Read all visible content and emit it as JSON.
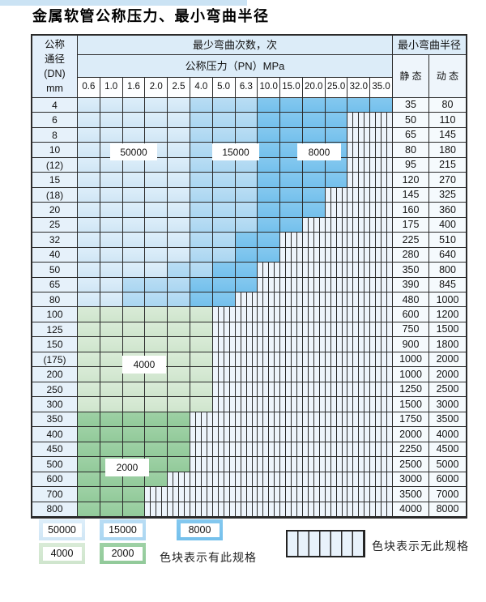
{
  "title": "金属软管公称压力、最小弯曲半径",
  "colors": {
    "blue_50000": "#d9ebf8",
    "blue_15000": "#b2d9f2",
    "blue_8000": "#79c3ee",
    "green_4000": "#d5e8d3",
    "green_2000": "#97cd9f",
    "grid_line": "#2b2b2b",
    "header_bg": "#dcecf8"
  },
  "table": {
    "header": {
      "dn_lines": [
        "公称",
        "通径",
        "(DN)",
        "mm"
      ],
      "bend_cycles_label": "最少弯曲次数，次",
      "pressure_label": "公称压力（PN）MPa",
      "min_radius_label": "最小弯曲半径",
      "static_label": "静 态",
      "dynamic_label": "动 态",
      "pressures": [
        "0.6",
        "1.0",
        "1.6",
        "2.0",
        "2.5",
        "4.0",
        "5.0",
        "6.3",
        "10.0",
        "15.0",
        "20.0",
        "25.0",
        "32.0",
        "35.0"
      ]
    },
    "cell_code_meaning": {
      "L": "50000",
      "M": "15000",
      "D": "8000",
      "G": "4000",
      "E": "2000",
      "S": "no-spec-striped"
    },
    "rows": [
      {
        "dn": "4",
        "cells": "LLLLLMMMDDDDDD",
        "static": "35",
        "dynamic": "80"
      },
      {
        "dn": "6",
        "cells": "LLLLLMMMDDDDSS",
        "static": "50",
        "dynamic": "110"
      },
      {
        "dn": "8",
        "cells": "LLLLLMMMDDDDSS",
        "static": "65",
        "dynamic": "145"
      },
      {
        "dn": "10",
        "cells": "LLLLLMMMDDDDSS",
        "static": "80",
        "dynamic": "180"
      },
      {
        "dn": "(12)",
        "cells": "LLLLLMMMDDDDSS",
        "static": "95",
        "dynamic": "215"
      },
      {
        "dn": "15",
        "cells": "LLLLLMMMDDDDSS",
        "static": "120",
        "dynamic": "270"
      },
      {
        "dn": "(18)",
        "cells": "LLLLLMMMDDDSSS",
        "static": "145",
        "dynamic": "325"
      },
      {
        "dn": "20",
        "cells": "LLLLLMMMDDDSSS",
        "static": "160",
        "dynamic": "360"
      },
      {
        "dn": "25",
        "cells": "LLLLLMMMDDSSSS",
        "static": "175",
        "dynamic": "400"
      },
      {
        "dn": "32",
        "cells": "LLLLLMMDDSSSSS",
        "static": "225",
        "dynamic": "510"
      },
      {
        "dn": "40",
        "cells": "LLLLLMMDDSSSSS",
        "static": "280",
        "dynamic": "640"
      },
      {
        "dn": "50",
        "cells": "LLLLMMDDSSSSSS",
        "static": "350",
        "dynamic": "800"
      },
      {
        "dn": "65",
        "cells": "LLMMMDDDSSSSSS",
        "static": "390",
        "dynamic": "845"
      },
      {
        "dn": "80",
        "cells": "LLMMMDDSSSSSSS",
        "static": "480",
        "dynamic": "1000"
      },
      {
        "dn": "100",
        "cells": "GGGGGGSSSSSSSS",
        "static": "600",
        "dynamic": "1200"
      },
      {
        "dn": "125",
        "cells": "GGGGGGSSSSSSSS",
        "static": "750",
        "dynamic": "1500"
      },
      {
        "dn": "150",
        "cells": "GGGGGGSSSSSSSS",
        "static": "900",
        "dynamic": "1800"
      },
      {
        "dn": "(175)",
        "cells": "GGGGGGSSSSSSSS",
        "static": "1000",
        "dynamic": "2000"
      },
      {
        "dn": "200",
        "cells": "GGGGGGSSSSSSSS",
        "static": "1000",
        "dynamic": "2000"
      },
      {
        "dn": "250",
        "cells": "GGGGGGSSSSSSSS",
        "static": "1250",
        "dynamic": "2500"
      },
      {
        "dn": "300",
        "cells": "GGGGGGSSSSSSSS",
        "static": "1500",
        "dynamic": "3000"
      },
      {
        "dn": "350",
        "cells": "EEEEESSSSSSSSS",
        "static": "1750",
        "dynamic": "3500"
      },
      {
        "dn": "400",
        "cells": "EEEEESSSSSSSSS",
        "static": "2000",
        "dynamic": "4000"
      },
      {
        "dn": "450",
        "cells": "EEEEESSSSSSSSS",
        "static": "2250",
        "dynamic": "4500"
      },
      {
        "dn": "500",
        "cells": "EEEEESSSSSSSSS",
        "static": "2500",
        "dynamic": "5000"
      },
      {
        "dn": "600",
        "cells": "EEEESSSSSSSSSS",
        "static": "3000",
        "dynamic": "6000"
      },
      {
        "dn": "700",
        "cells": "EEESSSSSSSSSSS",
        "static": "3500",
        "dynamic": "7000"
      },
      {
        "dn": "800",
        "cells": "EEESSSSSSSSSSS",
        "static": "4000",
        "dynamic": "8000"
      }
    ]
  },
  "overlay_labels": {
    "b50000": "50000",
    "b15000": "15000",
    "b8000": "8000",
    "g4000": "4000",
    "g2000": "2000"
  },
  "legend": {
    "items": [
      {
        "label": "50000",
        "code": "L"
      },
      {
        "label": "15000",
        "code": "M"
      },
      {
        "label": "8000",
        "code": "D"
      },
      {
        "label": "4000",
        "code": "G"
      },
      {
        "label": "2000",
        "code": "E"
      }
    ],
    "has_spec_text": "色块表示有此规格",
    "no_spec_text": "色块表示无此规格"
  }
}
